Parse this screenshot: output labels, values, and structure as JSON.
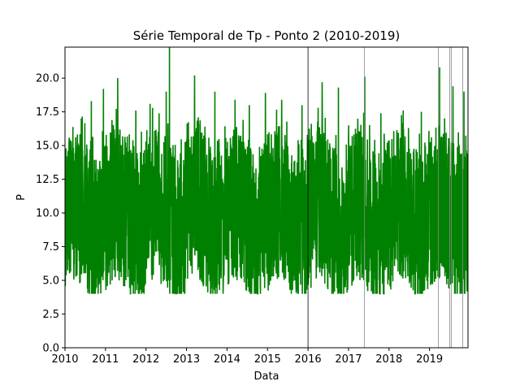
{
  "chart_data": {
    "type": "line",
    "title": "Série Temporal de Tp - Ponto 2 (2010-2019)",
    "xlabel": "Data",
    "ylabel": "P",
    "xlim": [
      2010.0,
      2019.95
    ],
    "ylim": [
      0,
      22.3
    ],
    "x_ticks": [
      2010,
      2011,
      2012,
      2013,
      2014,
      2015,
      2016,
      2017,
      2018,
      2019
    ],
    "x_tick_labels": [
      "2010",
      "2011",
      "2012",
      "2013",
      "2014",
      "2015",
      "2016",
      "2017",
      "2018",
      "2019"
    ],
    "y_ticks": [
      0.0,
      2.5,
      5.0,
      7.5,
      10.0,
      12.5,
      15.0,
      17.5,
      20.0
    ],
    "y_tick_labels": [
      "0.0",
      "2.5",
      "5.0",
      "7.5",
      "10.0",
      "12.5",
      "15.0",
      "17.5",
      "20.0"
    ],
    "grid": false,
    "series": [
      {
        "color": "#008000",
        "x_start": 2010.0,
        "x_end": 2019.95,
        "min": 4.0,
        "max": 22.3,
        "mean": 10.0,
        "peaks": [
          [
            2010.1,
            15.2
          ],
          [
            2010.4,
            17.0
          ],
          [
            2010.65,
            18.3
          ],
          [
            2010.95,
            19.2
          ],
          [
            2011.3,
            20.0
          ],
          [
            2011.75,
            17.6
          ],
          [
            2012.1,
            18.1
          ],
          [
            2012.5,
            19.0
          ],
          [
            2012.58,
            22.3
          ],
          [
            2013.2,
            20.2
          ],
          [
            2013.7,
            19.0
          ],
          [
            2014.2,
            18.4
          ],
          [
            2014.55,
            18.0
          ],
          [
            2014.95,
            18.9
          ],
          [
            2015.35,
            18.4
          ],
          [
            2015.85,
            18.0
          ],
          [
            2016.35,
            19.7
          ],
          [
            2016.75,
            19.3
          ],
          [
            2017.4,
            20.1
          ],
          [
            2017.8,
            17.4
          ],
          [
            2018.35,
            17.6
          ],
          [
            2018.8,
            17.5
          ],
          [
            2019.25,
            20.8
          ],
          [
            2019.58,
            19.4
          ],
          [
            2019.85,
            19.0
          ]
        ]
      }
    ],
    "vertical_lines": [
      {
        "x": 2016.0,
        "color": "#000000"
      },
      {
        "x": 2017.39,
        "color": "#888888"
      },
      {
        "x": 2019.22,
        "color": "#888888"
      },
      {
        "x": 2019.5,
        "color": "#888888"
      },
      {
        "x": 2019.54,
        "color": "#888888"
      },
      {
        "x": 2019.82,
        "color": "#888888"
      }
    ]
  }
}
